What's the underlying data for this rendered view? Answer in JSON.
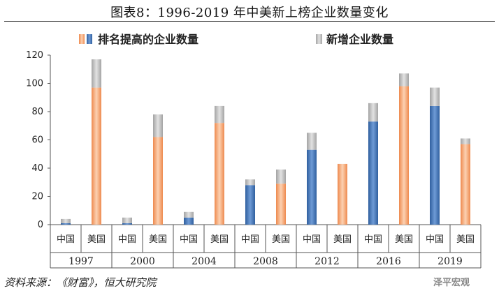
{
  "page": {
    "title": "图表8：1996-2019 年中美新上榜企业数量变化",
    "source": "资料来源：《财富》，恒大研究院",
    "watermark": "泽平宏观"
  },
  "chart_data": {
    "type": "bar",
    "stacked": true,
    "title": "",
    "xlabel": "",
    "ylabel": "",
    "ylim": [
      0,
      120
    ],
    "yticks": [
      0,
      20,
      40,
      60,
      80,
      100,
      120
    ],
    "grid": false,
    "legend_position": "top",
    "legend": {
      "ranked_label": "排名提高的企业数量",
      "new_label": "新增企业数量"
    },
    "groups": [
      "1997",
      "2000",
      "2004",
      "2008",
      "2012",
      "2016",
      "2019"
    ],
    "countries": [
      "中国",
      "美国"
    ],
    "colors": {
      "china": "#3d6fb5",
      "us": "#f2a06e",
      "new": "#b7b7b7"
    },
    "series": [
      {
        "key": "ranked",
        "china": [
          1,
          1,
          5,
          28,
          53,
          73,
          84
        ],
        "us": [
          97,
          62,
          72,
          29,
          43,
          98,
          57
        ]
      },
      {
        "key": "new",
        "china": [
          3,
          4,
          4,
          4,
          12,
          13,
          13
        ],
        "us": [
          20,
          16,
          12,
          10,
          0,
          9,
          4
        ]
      }
    ]
  }
}
